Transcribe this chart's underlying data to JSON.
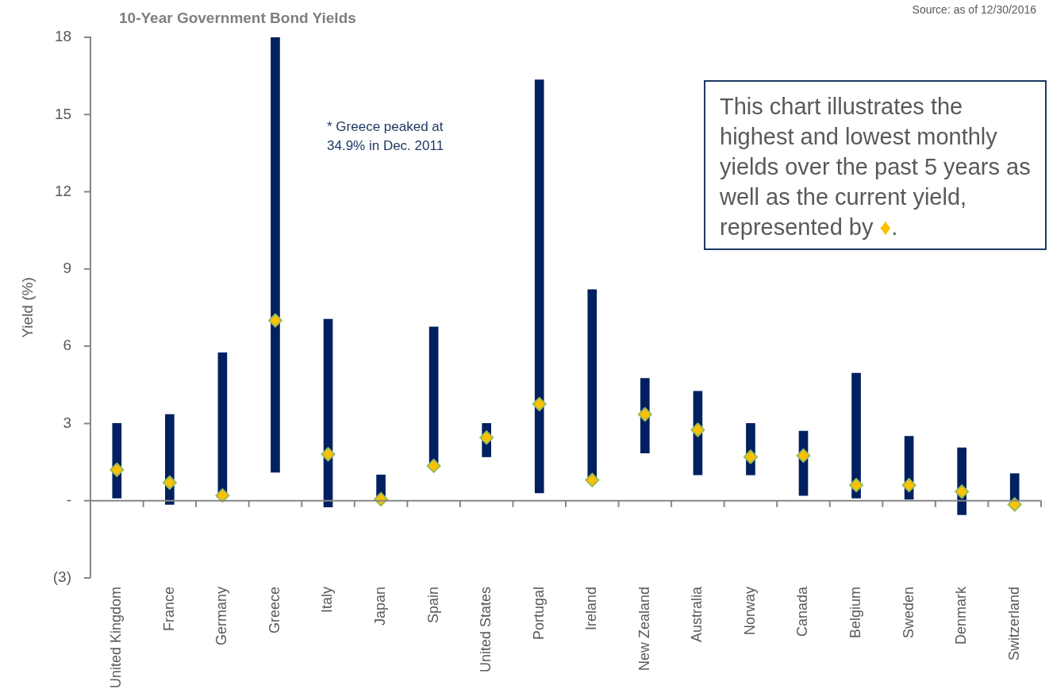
{
  "chart_data": {
    "type": "bar",
    "title": "10-Year Government Bond Yields",
    "ylabel": "Yield (%)",
    "categories": [
      "United Kingdom",
      "France",
      "Germany",
      "Greece",
      "Italy",
      "Japan",
      "Spain",
      "United States",
      "Portugal",
      "Ireland",
      "New Zealand",
      "Australia",
      "Norway",
      "Canada",
      "Belgium",
      "Sweden",
      "Denmark",
      "Switzerland"
    ],
    "series": [
      {
        "color": "#002060",
        "base": [
          0.1,
          -0.15,
          0.2,
          1.1,
          -0.25,
          0.05,
          1.35,
          1.7,
          0.3,
          0.8,
          1.85,
          1.0,
          1.0,
          0.2,
          0.1,
          0.05,
          -0.55,
          -0.15
        ],
        "values": [
          2.9,
          3.5,
          5.55,
          16.9,
          7.3,
          0.95,
          5.4,
          1.3,
          16.05,
          7.4,
          2.9,
          3.25,
          2.0,
          2.5,
          4.85,
          2.45,
          2.6,
          1.2
        ]
      },
      {
        "type": "scatter",
        "color": "#ffc000",
        "marker": "diamond",
        "x": [
          "United Kingdom",
          "France",
          "Germany",
          "Greece",
          "Italy",
          "Japan",
          "Spain",
          "United States",
          "Portugal",
          "Ireland",
          "New Zealand",
          "Australia",
          "Norway",
          "Canada",
          "Belgium",
          "Sweden",
          "Denmark",
          "Switzerland"
        ],
        "values": [
          1.2,
          0.7,
          0.2,
          7.0,
          1.8,
          0.05,
          1.35,
          2.45,
          3.75,
          0.8,
          3.35,
          2.75,
          1.7,
          1.75,
          0.6,
          0.6,
          0.35,
          -0.15
        ]
      }
    ],
    "ylim": [
      -3,
      18
    ],
    "yticks": [
      {
        "value": -3,
        "label": "(3)"
      },
      {
        "value": 0,
        "label": "-"
      },
      3,
      6,
      9,
      12,
      15,
      18
    ],
    "legend": false,
    "annotations": [
      "* Greece peaked at 34.9% in Dec. 2011",
      "This chart illustrates the highest and lowest monthly yields over the past 5 years as well as the current yield, represented by ♦.",
      "Source: as of 12/30/2016"
    ]
  }
}
